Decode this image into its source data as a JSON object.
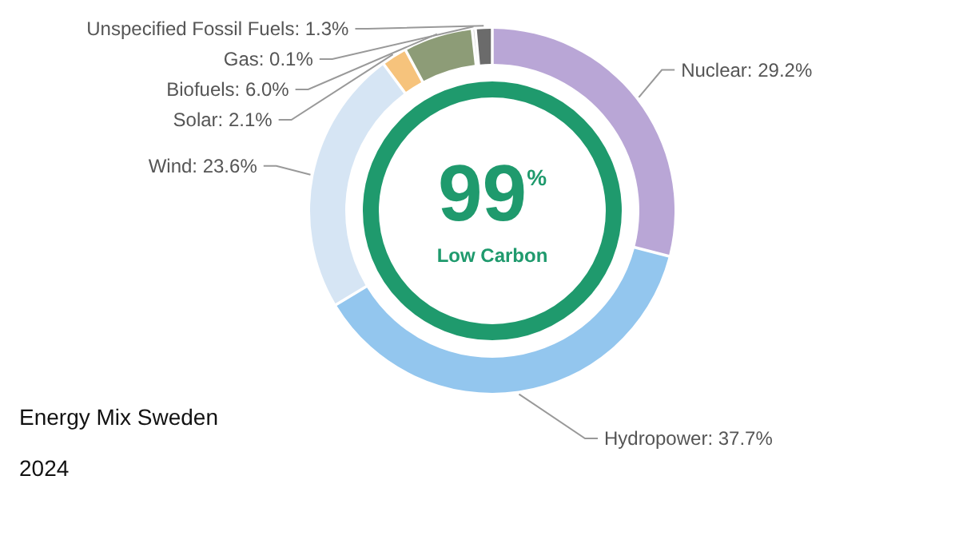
{
  "chart_data": {
    "type": "donut",
    "title": "Energy Mix Sweden",
    "subtitle": "2024",
    "categories": [
      "Nuclear",
      "Hydropower",
      "Wind",
      "Solar",
      "Biofuels",
      "Gas",
      "Unspecified Fossil Fuels"
    ],
    "values": [
      29.2,
      37.7,
      23.6,
      2.1,
      6.0,
      0.1,
      1.3
    ],
    "value_labels": [
      "29.2%",
      "37.7%",
      "23.6%",
      "2.1%",
      "6.0%",
      "0.1%",
      "1.3%"
    ],
    "colors": [
      "#b9a6d6",
      "#93c6ee",
      "#d6e5f4",
      "#f6c37c",
      "#8d9c77",
      "#bdbdbd",
      "#6b6b6b"
    ],
    "annotations": [
      "99$^{%}$",
      "Low Carbon"
    ]
  }
}
